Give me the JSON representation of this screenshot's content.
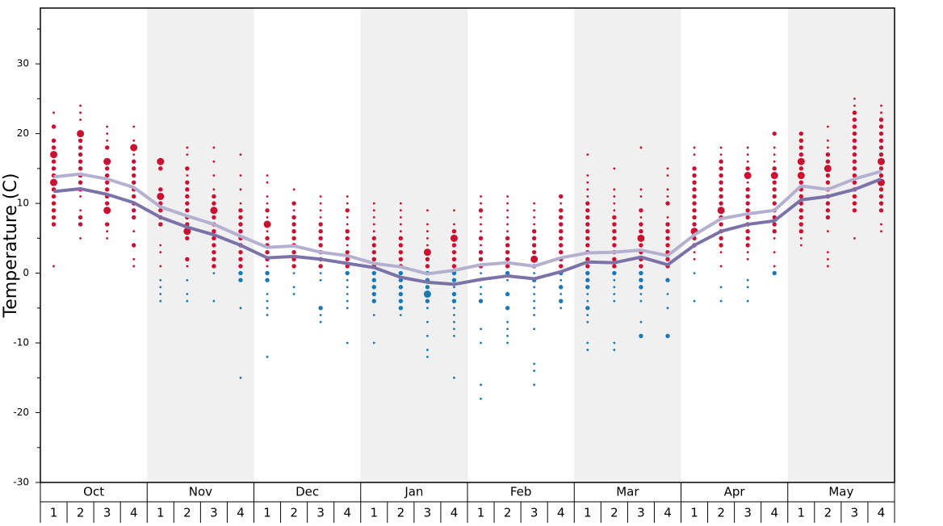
{
  "chart_data": {
    "type": "dot",
    "ylabel": "Temperature (C)",
    "ylim": [
      -30,
      38
    ],
    "yticks": [
      -30,
      -20,
      -10,
      0,
      10,
      20,
      30
    ],
    "minor_yticks": [
      -25,
      -15,
      -5,
      5,
      15,
      25,
      35
    ],
    "months": [
      "Oct",
      "Nov",
      "Dec",
      "Jan",
      "Feb",
      "Mar",
      "Apr",
      "May"
    ],
    "weeks": [
      1,
      2,
      3,
      4
    ],
    "band_color": "#f0f0f0",
    "warm_color": "#cc1030",
    "cold_color": "#1a78b4",
    "dots": [
      {
        "temps": [
          23,
          21,
          19,
          18,
          17,
          16,
          15,
          14,
          13,
          12,
          11,
          10,
          9,
          8,
          7,
          1
        ],
        "sizes": [
          1,
          2,
          2,
          2,
          3,
          2,
          2,
          2,
          3,
          2,
          2,
          2,
          2,
          2,
          2,
          1
        ]
      },
      {
        "temps": [
          24,
          23,
          22,
          20,
          19,
          18,
          17,
          16,
          15,
          14,
          13,
          12,
          11,
          9,
          8,
          7,
          5
        ],
        "sizes": [
          1,
          1,
          1,
          3,
          2,
          2,
          2,
          2,
          2,
          2,
          2,
          2,
          1,
          1,
          2,
          2,
          1
        ]
      },
      {
        "temps": [
          21,
          20,
          19,
          18,
          16,
          15,
          14,
          13,
          12,
          11,
          10,
          9,
          7,
          6,
          5
        ],
        "sizes": [
          1,
          1,
          1,
          2,
          3,
          2,
          2,
          2,
          2,
          2,
          2,
          3,
          2,
          1,
          1
        ]
      },
      {
        "temps": [
          21,
          19,
          18,
          17,
          16,
          15,
          14,
          13,
          12,
          11,
          10,
          9,
          8,
          6,
          4,
          2,
          1
        ],
        "sizes": [
          1,
          1,
          3,
          1,
          2,
          2,
          2,
          2,
          2,
          2,
          2,
          2,
          2,
          1,
          2,
          1,
          1
        ]
      },
      {
        "temps": [
          16,
          15,
          12,
          11,
          10,
          9,
          8,
          7,
          4,
          3,
          1,
          -1,
          -2,
          -3,
          -4
        ],
        "sizes": [
          3,
          2,
          2,
          3,
          2,
          2,
          2,
          2,
          1,
          1,
          1,
          1,
          1,
          1,
          1
        ]
      },
      {
        "temps": [
          18,
          17,
          15,
          14,
          13,
          12,
          11,
          10,
          9,
          8,
          7,
          6,
          5,
          2,
          1,
          -1,
          -3,
          -4
        ],
        "sizes": [
          1,
          1,
          2,
          1,
          2,
          2,
          2,
          2,
          2,
          2,
          2,
          3,
          2,
          2,
          1,
          1,
          1,
          1
        ]
      },
      {
        "temps": [
          18,
          16,
          14,
          12,
          11,
          10,
          9,
          8,
          7,
          6,
          5,
          4,
          3,
          2,
          1,
          0,
          -4
        ],
        "sizes": [
          1,
          1,
          1,
          1,
          2,
          2,
          3,
          2,
          2,
          2,
          2,
          2,
          2,
          2,
          2,
          1,
          1
        ]
      },
      {
        "temps": [
          17,
          14,
          12,
          10,
          9,
          8,
          7,
          6,
          5,
          4,
          3,
          2,
          1,
          0,
          -1,
          -5,
          -15
        ],
        "sizes": [
          1,
          1,
          1,
          1,
          2,
          2,
          2,
          2,
          2,
          2,
          2,
          2,
          2,
          2,
          2,
          1,
          1
        ]
      },
      {
        "temps": [
          14,
          13,
          11,
          10,
          9,
          8,
          7,
          6,
          5,
          4,
          3,
          2,
          1,
          0,
          -1,
          -3,
          -4,
          -5,
          -6,
          -12
        ],
        "sizes": [
          1,
          1,
          1,
          1,
          2,
          1,
          3,
          1,
          2,
          2,
          2,
          2,
          1,
          2,
          2,
          1,
          1,
          1,
          1,
          1
        ]
      },
      {
        "temps": [
          12,
          10,
          9,
          8,
          7,
          6,
          5,
          4,
          3,
          2,
          1,
          0,
          -2,
          -3
        ],
        "sizes": [
          1,
          2,
          1,
          2,
          2,
          2,
          2,
          2,
          2,
          2,
          2,
          1,
          1,
          1
        ]
      },
      {
        "temps": [
          11,
          10,
          9,
          8,
          7,
          6,
          5,
          4,
          3,
          2,
          1,
          0,
          -1,
          -5,
          -6,
          -7
        ],
        "sizes": [
          1,
          1,
          1,
          1,
          2,
          2,
          2,
          2,
          2,
          2,
          2,
          1,
          1,
          2,
          1,
          1
        ]
      },
      {
        "temps": [
          11,
          10,
          9,
          8,
          7,
          6,
          5,
          4,
          3,
          2,
          1,
          0,
          -1,
          -2,
          -3,
          -4,
          -5,
          -10
        ],
        "sizes": [
          1,
          1,
          2,
          1,
          1,
          2,
          2,
          1,
          2,
          2,
          2,
          2,
          1,
          1,
          1,
          1,
          1,
          1
        ]
      },
      {
        "temps": [
          10,
          9,
          8,
          7,
          6,
          5,
          4,
          3,
          2,
          1,
          0,
          -1,
          -2,
          -3,
          -4,
          -6,
          -10
        ],
        "sizes": [
          1,
          1,
          1,
          1,
          1,
          2,
          2,
          2,
          2,
          2,
          2,
          2,
          2,
          2,
          2,
          1,
          1
        ]
      },
      {
        "temps": [
          10,
          9,
          8,
          7,
          6,
          5,
          4,
          3,
          2,
          1,
          0,
          -1,
          -2,
          -3,
          -4,
          -5,
          -6
        ],
        "sizes": [
          1,
          1,
          1,
          1,
          1,
          2,
          2,
          2,
          2,
          2,
          2,
          2,
          2,
          2,
          2,
          2,
          1
        ]
      },
      {
        "temps": [
          9,
          7,
          6,
          5,
          4,
          3,
          2,
          1,
          0,
          -1,
          -2,
          -3,
          -4,
          -5,
          -7,
          -9,
          -11,
          -12
        ],
        "sizes": [
          1,
          1,
          1,
          1,
          1,
          3,
          2,
          2,
          2,
          2,
          2,
          3,
          2,
          1,
          1,
          1,
          1,
          1
        ]
      },
      {
        "temps": [
          9,
          7,
          6,
          5,
          4,
          3,
          2,
          1,
          0,
          -1,
          -2,
          -3,
          -4,
          -5,
          -6,
          -7,
          -8,
          -9,
          -15
        ],
        "sizes": [
          1,
          1,
          2,
          3,
          2,
          2,
          2,
          2,
          2,
          2,
          1,
          2,
          2,
          1,
          1,
          1,
          1,
          1,
          1
        ]
      },
      {
        "temps": [
          11,
          10,
          9,
          8,
          7,
          6,
          5,
          4,
          3,
          2,
          1,
          0,
          -1,
          -2,
          -3,
          -4,
          -8,
          -10,
          -16,
          -18
        ],
        "sizes": [
          1,
          1,
          2,
          1,
          1,
          1,
          2,
          1,
          2,
          2,
          2,
          1,
          1,
          1,
          1,
          2,
          1,
          1,
          1,
          1
        ]
      },
      {
        "temps": [
          11,
          10,
          9,
          8,
          7,
          6,
          5,
          4,
          3,
          2,
          1,
          0,
          -1,
          -3,
          -5,
          -7,
          -8,
          -9,
          -10
        ],
        "sizes": [
          1,
          1,
          1,
          1,
          1,
          1,
          2,
          2,
          2,
          2,
          2,
          2,
          1,
          2,
          2,
          1,
          1,
          1,
          1
        ]
      },
      {
        "temps": [
          10,
          9,
          8,
          7,
          6,
          5,
          4,
          3,
          2,
          1,
          0,
          -1,
          -2,
          -3,
          -4,
          -5,
          -6,
          -8,
          -13,
          -14,
          -16
        ],
        "sizes": [
          1,
          1,
          1,
          1,
          2,
          2,
          2,
          2,
          3,
          2,
          1,
          2,
          1,
          1,
          1,
          1,
          1,
          1,
          1,
          1,
          1
        ]
      },
      {
        "temps": [
          11,
          10,
          9,
          8,
          7,
          6,
          5,
          4,
          3,
          2,
          1,
          0,
          -1,
          -2,
          -3,
          -4,
          -5
        ],
        "sizes": [
          2,
          1,
          2,
          2,
          2,
          2,
          2,
          2,
          2,
          2,
          2,
          2,
          1,
          2,
          1,
          2,
          1
        ]
      },
      {
        "temps": [
          17,
          14,
          13,
          12,
          11,
          10,
          9,
          8,
          7,
          6,
          5,
          4,
          3,
          2,
          1,
          0,
          -1,
          -2,
          -3,
          -4,
          -5,
          -6,
          -7,
          -10,
          -11
        ],
        "sizes": [
          1,
          1,
          1,
          1,
          1,
          2,
          2,
          2,
          2,
          2,
          2,
          2,
          2,
          2,
          2,
          2,
          2,
          2,
          1,
          1,
          2,
          1,
          1,
          1,
          1
        ]
      },
      {
        "temps": [
          15,
          12,
          11,
          10,
          9,
          8,
          7,
          6,
          5,
          4,
          3,
          2,
          1,
          0,
          -1,
          -2,
          -3,
          -4,
          -10,
          -11
        ],
        "sizes": [
          1,
          1,
          1,
          1,
          1,
          2,
          2,
          2,
          2,
          2,
          2,
          2,
          2,
          2,
          1,
          1,
          1,
          1,
          1,
          1
        ]
      },
      {
        "temps": [
          18,
          12,
          11,
          9,
          8,
          7,
          6,
          5,
          4,
          3,
          2,
          1,
          0,
          -1,
          -2,
          -3,
          -4,
          -7,
          -9
        ],
        "sizes": [
          1,
          1,
          1,
          2,
          1,
          2,
          2,
          3,
          2,
          2,
          2,
          2,
          2,
          2,
          2,
          1,
          1,
          1,
          2
        ]
      },
      {
        "temps": [
          15,
          14,
          12,
          11,
          10,
          8,
          7,
          6,
          5,
          4,
          3,
          2,
          1,
          -1,
          -3,
          -5,
          -9
        ],
        "sizes": [
          1,
          1,
          1,
          1,
          2,
          1,
          2,
          2,
          2,
          2,
          2,
          2,
          2,
          2,
          1,
          1,
          2
        ]
      },
      {
        "temps": [
          18,
          17,
          15,
          14,
          13,
          12,
          11,
          10,
          9,
          8,
          7,
          6,
          5,
          4,
          3,
          2,
          0,
          -4
        ],
        "sizes": [
          1,
          1,
          2,
          2,
          2,
          2,
          2,
          2,
          2,
          2,
          2,
          3,
          2,
          2,
          1,
          1,
          1,
          1
        ]
      },
      {
        "temps": [
          18,
          17,
          16,
          15,
          14,
          13,
          12,
          11,
          10,
          9,
          8,
          7,
          6,
          5,
          4,
          3,
          1,
          -2,
          -4
        ],
        "sizes": [
          1,
          1,
          2,
          2,
          2,
          2,
          2,
          2,
          2,
          3,
          2,
          2,
          2,
          2,
          2,
          1,
          1,
          1,
          1
        ]
      },
      {
        "temps": [
          18,
          17,
          16,
          15,
          14,
          13,
          12,
          11,
          10,
          9,
          8,
          7,
          6,
          5,
          4,
          3,
          2,
          -1,
          -2,
          -4
        ],
        "sizes": [
          1,
          1,
          1,
          2,
          3,
          1,
          2,
          2,
          2,
          2,
          2,
          2,
          2,
          2,
          2,
          1,
          1,
          1,
          1,
          1
        ]
      },
      {
        "temps": [
          20,
          18,
          17,
          16,
          15,
          14,
          13,
          12,
          11,
          10,
          9,
          8,
          7,
          6,
          5,
          3,
          1,
          0
        ],
        "sizes": [
          2,
          1,
          1,
          1,
          2,
          3,
          2,
          2,
          2,
          2,
          2,
          2,
          2,
          2,
          1,
          1,
          1,
          2
        ]
      },
      {
        "temps": [
          20,
          19,
          18,
          17,
          16,
          15,
          14,
          13,
          12,
          11,
          10,
          9,
          8,
          7,
          6,
          5,
          4
        ],
        "sizes": [
          2,
          2,
          2,
          2,
          3,
          2,
          3,
          2,
          2,
          2,
          2,
          2,
          2,
          2,
          2,
          1,
          1
        ]
      },
      {
        "temps": [
          21,
          19,
          18,
          17,
          16,
          15,
          14,
          13,
          12,
          11,
          10,
          9,
          8,
          6,
          3,
          2,
          1
        ],
        "sizes": [
          1,
          1,
          1,
          2,
          2,
          3,
          2,
          2,
          2,
          2,
          2,
          2,
          2,
          1,
          1,
          1,
          1
        ]
      },
      {
        "temps": [
          25,
          24,
          23,
          22,
          21,
          20,
          19,
          18,
          17,
          16,
          15,
          14,
          13,
          12,
          11,
          10,
          9,
          5
        ],
        "sizes": [
          1,
          1,
          2,
          2,
          2,
          2,
          2,
          2,
          2,
          2,
          2,
          2,
          2,
          2,
          2,
          2,
          2,
          1
        ]
      },
      {
        "temps": [
          24,
          23,
          22,
          21,
          20,
          19,
          18,
          17,
          16,
          15,
          14,
          13,
          12,
          11,
          10,
          9,
          7,
          6
        ],
        "sizes": [
          1,
          1,
          2,
          2,
          2,
          2,
          2,
          2,
          3,
          2,
          2,
          3,
          2,
          2,
          2,
          2,
          1,
          1
        ]
      }
    ],
    "series": [
      {
        "color": "#b3b0d0",
        "values": [
          13.8,
          14.2,
          13.5,
          12.3,
          9.5,
          8.2,
          7.0,
          5.3,
          3.7,
          3.9,
          3.0,
          2.5,
          1.4,
          0.9,
          -0.1,
          0.4,
          1.2,
          1.5,
          1.0,
          2.2,
          2.9,
          3.0,
          3.3,
          2.5,
          5.5,
          7.8,
          8.5,
          9.0,
          12.5,
          12.0,
          13.5,
          14.6
        ]
      },
      {
        "color": "#7b72a8",
        "values": [
          11.7,
          12.1,
          11.3,
          10.1,
          8.0,
          6.6,
          5.5,
          4.0,
          2.2,
          2.4,
          2.0,
          1.4,
          0.8,
          -0.6,
          -1.3,
          -1.6,
          -0.9,
          -0.4,
          -0.8,
          0.2,
          1.6,
          1.5,
          2.3,
          1.2,
          4.0,
          6.0,
          7.0,
          7.5,
          10.5,
          11.0,
          12.0,
          13.5
        ]
      }
    ]
  }
}
